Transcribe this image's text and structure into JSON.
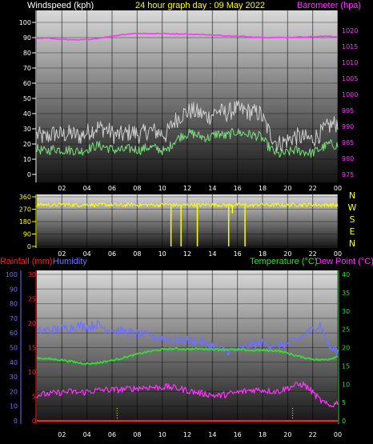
{
  "colors": {
    "windspeed": "#ffffff",
    "gust": "#d0d0d0",
    "wind_avg": "#7ce07c",
    "barometer": "#ff33ff",
    "direction": "#ffff00",
    "rainfall": "#ff2020",
    "humidity": "#7070ff",
    "temperature": "#33dd33",
    "dewpoint": "#ff33ff",
    "title": "#ffff00",
    "compass": "#ffff00",
    "axis_text": "#ffffff"
  },
  "chart_data": [
    {
      "type": "line",
      "title": "24 hour graph day : 09 May 2022",
      "ylabel": "Windspeed (kph)",
      "y2label": "Barometer (hpa)",
      "x_ticks": [
        "02",
        "04",
        "06",
        "08",
        "10",
        "12",
        "14",
        "16",
        "18",
        "20",
        "22",
        "00"
      ],
      "ylim": [
        0,
        100
      ],
      "y_ticks": [
        "0",
        "10",
        "20",
        "30",
        "40",
        "50",
        "60",
        "70",
        "80",
        "90",
        "100"
      ],
      "y2lim": [
        975,
        1022.5
      ],
      "y2_ticks": [
        "975",
        "980",
        "985",
        "990",
        "995",
        "1000",
        "1005",
        "1010",
        "1015",
        "1020"
      ],
      "series": [
        {
          "key": "gust",
          "values": [
            26,
            24,
            27,
            26,
            27,
            25,
            28,
            31,
            30,
            26,
            26,
            28,
            26,
            29,
            28,
            26,
            35,
            40,
            42,
            40,
            38,
            42,
            40,
            43,
            42,
            41,
            40,
            28,
            20,
            22,
            25,
            24,
            23,
            27,
            32,
            34
          ],
          "axis": "left"
        },
        {
          "key": "wind_avg",
          "values": [
            17,
            15,
            17,
            16,
            16,
            15,
            17,
            19,
            18,
            16,
            16,
            17,
            16,
            18,
            17,
            15,
            22,
            26,
            27,
            25,
            24,
            27,
            25,
            28,
            27,
            26,
            25,
            18,
            13,
            14,
            16,
            15,
            14,
            17,
            20,
            19
          ],
          "axis": "left"
        },
        {
          "key": "barometer",
          "values": [
            1017.5,
            1017.6,
            1017.4,
            1017.2,
            1017.0,
            1017.0,
            1017.2,
            1017.5,
            1017.9,
            1018.3,
            1018.7,
            1019.0,
            1019.1,
            1019.0,
            1019.0,
            1019.0,
            1018.9,
            1018.9,
            1018.8,
            1018.7,
            1018.6,
            1018.5,
            1018.3,
            1018.2,
            1018.1,
            1018.0,
            1017.9,
            1017.8,
            1017.8,
            1017.8,
            1017.9,
            1018.0,
            1018.0,
            1018.1,
            1018.2,
            1018.0
          ],
          "axis": "right"
        }
      ]
    },
    {
      "type": "line",
      "x_ticks": [
        "02",
        "04",
        "06",
        "08",
        "10",
        "12",
        "14",
        "16",
        "18",
        "20",
        "22",
        "00"
      ],
      "ylim": [
        0,
        360
      ],
      "y_ticks": [
        "0",
        "90",
        "180",
        "270",
        "360"
      ],
      "compass_labels": [
        "N",
        "W",
        "S",
        "E",
        "N"
      ],
      "series": [
        {
          "key": "direction",
          "values": [
            300,
            304,
            298,
            306,
            302,
            300,
            305,
            299,
            303,
            301,
            298,
            304,
            300,
            302,
            299,
            305,
            301,
            298,
            303,
            300,
            304,
            302,
            299,
            303,
            301,
            298,
            305,
            300,
            302,
            299,
            303,
            301,
            304,
            300,
            302,
            298
          ]
        }
      ],
      "drops": [
        {
          "hour": 10.7,
          "value": 0
        },
        {
          "hour": 11.5,
          "value": 0
        },
        {
          "hour": 12.8,
          "value": 0
        },
        {
          "hour": 15.3,
          "value": 0
        },
        {
          "hour": 15.6,
          "value": 240
        },
        {
          "hour": 16.6,
          "value": 0
        }
      ]
    },
    {
      "type": "line",
      "legend": {
        "rainfall": "Rainfall (mm)",
        "humidity": "Humidity",
        "temperature": "Temperature (°C)",
        "dewpoint": "Dew Point (°C)"
      },
      "x_ticks": [
        "02",
        "04",
        "06",
        "08",
        "10",
        "12",
        "14",
        "16",
        "18",
        "20",
        "22",
        "00"
      ],
      "humidity_axis": {
        "lim": [
          0,
          100
        ],
        "ticks": [
          "0",
          "10",
          "20",
          "30",
          "40",
          "50",
          "60",
          "70",
          "80",
          "90",
          "100"
        ]
      },
      "rain_axis": {
        "lim": [
          0,
          30
        ],
        "ticks": [
          "0",
          "5",
          "10",
          "15",
          "20",
          "25",
          "30"
        ]
      },
      "temp_axis": {
        "lim": [
          0,
          40
        ],
        "ticks": [
          "0",
          "5",
          "10",
          "15",
          "20",
          "25",
          "30",
          "35",
          "40"
        ]
      },
      "series": [
        {
          "key": "humidity",
          "values": [
            61,
            62,
            62,
            63,
            64,
            65,
            64,
            66,
            63,
            62,
            61,
            60,
            59,
            58,
            57,
            56,
            55,
            55,
            55,
            54,
            52,
            50,
            48,
            48,
            50,
            52,
            53,
            52,
            52,
            52,
            55,
            58,
            62,
            66,
            50,
            47
          ],
          "axis": "humidity"
        },
        {
          "key": "temperature",
          "values": [
            17.2,
            17.0,
            16.8,
            16.6,
            16.2,
            15.8,
            15.6,
            15.8,
            16.2,
            16.6,
            17.2,
            17.8,
            18.4,
            18.9,
            19.3,
            19.6,
            19.7,
            19.6,
            19.6,
            19.7,
            19.6,
            19.5,
            19.5,
            19.4,
            19.4,
            19.2,
            19.3,
            19.2,
            19.2,
            18.6,
            17.9,
            17.3,
            16.9,
            16.6,
            16.9,
            17.6
          ],
          "axis": "temp"
        },
        {
          "key": "dewpoint",
          "values": [
            7.0,
            7.3,
            7.5,
            7.8,
            8.0,
            7.7,
            8.0,
            8.3,
            8.5,
            8.4,
            8.6,
            8.8,
            9.0,
            9.2,
            9.1,
            9.3,
            9.0,
            8.6,
            8.0,
            7.6,
            7.2,
            6.8,
            7.2,
            7.6,
            8.0,
            8.4,
            8.5,
            8.2,
            8.0,
            8.8,
            9.7,
            10.0,
            8.0,
            5.5,
            4.0,
            5.0
          ],
          "axis": "temp"
        },
        {
          "key": "rainfall",
          "values": [
            0,
            0,
            0,
            0,
            0,
            0,
            0,
            0,
            0,
            0,
            0,
            0,
            0,
            0,
            0,
            0,
            0,
            0,
            0,
            0,
            0,
            0,
            0,
            0,
            0,
            0,
            0,
            0,
            0,
            0,
            0,
            0,
            0,
            0,
            0,
            0
          ],
          "axis": "rain"
        }
      ],
      "time_markers": [
        6.4,
        20.4
      ]
    }
  ]
}
